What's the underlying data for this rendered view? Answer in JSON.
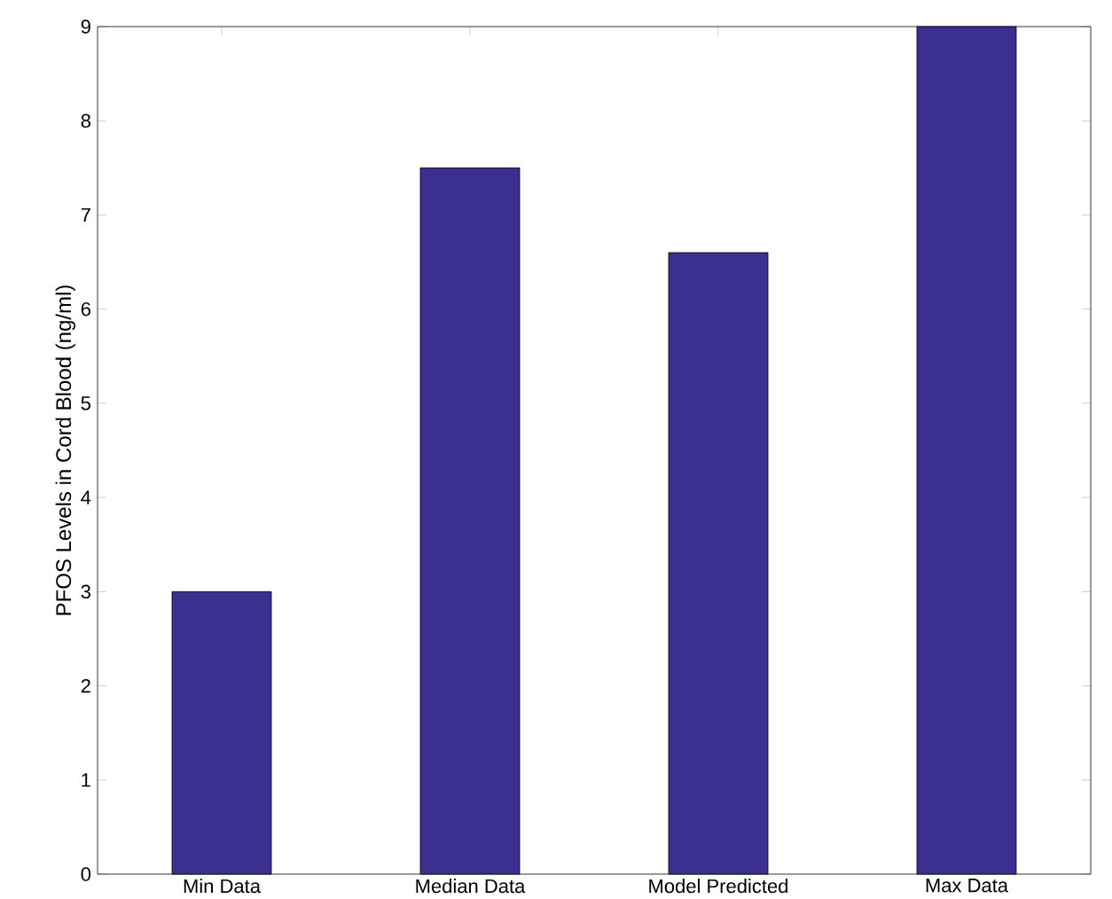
{
  "chart_data": {
    "type": "bar",
    "ylabel": "PFOS Levels in Cord Blood (ng/ml)",
    "categories": [
      "Min Data",
      "Median Data",
      "Model Predicted",
      "Max Data"
    ],
    "values": [
      3,
      7.5,
      6.6,
      9
    ],
    "color": "#3b2f8f",
    "ylim": [
      0,
      9
    ],
    "yticks": [
      0,
      1,
      2,
      3,
      4,
      5,
      6,
      7,
      8,
      9
    ],
    "grid": false
  }
}
